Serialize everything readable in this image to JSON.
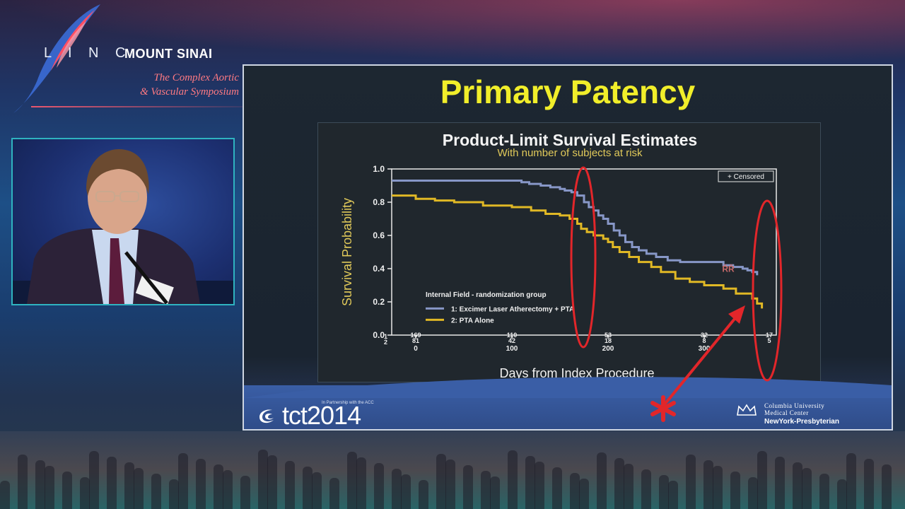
{
  "branding": {
    "linc": "L I N C",
    "mount_sinai": "MOUNT SINAI",
    "symposium_line1": "The Complex Aortic",
    "symposium_line2": "& Vascular Symposium"
  },
  "slide": {
    "title": "Primary Patency",
    "footer": {
      "tct_logo": "tct2014",
      "tct_partner": "In Partnership with the ACC",
      "columbia_line1": "Columbia University",
      "columbia_line2": "Medical Center",
      "nyp": "NewYork-Presbyterian"
    }
  },
  "colors": {
    "title": "#f1ee2a",
    "series1": "#8797c7",
    "series2": "#e0b825",
    "annotation": "#e2262a"
  },
  "chart_data": {
    "type": "line",
    "title": "Product-Limit Survival Estimates",
    "subtitle": "With number of subjects at risk",
    "xlabel": "Days from Index Procedure",
    "ylabel": "Survival Probability",
    "xlim": [
      -25,
      375
    ],
    "ylim": [
      0,
      1
    ],
    "x_ticks": [
      0,
      100,
      200,
      300
    ],
    "y_ticks": [
      "0.0",
      "0.2",
      "0.4",
      "0.6",
      "0.8",
      "1.0"
    ],
    "legend_title": "Internal Field - randomization group",
    "censored_label": "+ Censored",
    "censored_mark": "ŘŘ",
    "series": [
      {
        "name": "1: Excimer Laser Atherectomy + PTA",
        "color": "#8797c7",
        "points": [
          [
            -25,
            0.93
          ],
          [
            0,
            0.93
          ],
          [
            20,
            0.93
          ],
          [
            50,
            0.93
          ],
          [
            100,
            0.93
          ],
          [
            110,
            0.92
          ],
          [
            118,
            0.91
          ],
          [
            130,
            0.9
          ],
          [
            140,
            0.89
          ],
          [
            150,
            0.88
          ],
          [
            155,
            0.87
          ],
          [
            162,
            0.86
          ],
          [
            168,
            0.84
          ],
          [
            175,
            0.8
          ],
          [
            180,
            0.77
          ],
          [
            185,
            0.75
          ],
          [
            190,
            0.72
          ],
          [
            195,
            0.7
          ],
          [
            200,
            0.67
          ],
          [
            206,
            0.63
          ],
          [
            212,
            0.6
          ],
          [
            218,
            0.56
          ],
          [
            225,
            0.53
          ],
          [
            232,
            0.51
          ],
          [
            240,
            0.49
          ],
          [
            250,
            0.47
          ],
          [
            262,
            0.45
          ],
          [
            275,
            0.44
          ],
          [
            300,
            0.44
          ],
          [
            320,
            0.42
          ],
          [
            330,
            0.41
          ],
          [
            340,
            0.4
          ],
          [
            345,
            0.39
          ],
          [
            350,
            0.38
          ],
          [
            355,
            0.36
          ]
        ]
      },
      {
        "name": "2: PTA Alone",
        "color": "#e0b825",
        "points": [
          [
            -25,
            0.84
          ],
          [
            -15,
            0.84
          ],
          [
            0,
            0.82
          ],
          [
            20,
            0.81
          ],
          [
            40,
            0.8
          ],
          [
            70,
            0.78
          ],
          [
            100,
            0.77
          ],
          [
            120,
            0.75
          ],
          [
            135,
            0.73
          ],
          [
            150,
            0.72
          ],
          [
            160,
            0.7
          ],
          [
            168,
            0.67
          ],
          [
            172,
            0.64
          ],
          [
            178,
            0.62
          ],
          [
            185,
            0.6
          ],
          [
            195,
            0.58
          ],
          [
            200,
            0.56
          ],
          [
            205,
            0.53
          ],
          [
            212,
            0.5
          ],
          [
            222,
            0.47
          ],
          [
            232,
            0.44
          ],
          [
            245,
            0.41
          ],
          [
            255,
            0.38
          ],
          [
            270,
            0.34
          ],
          [
            285,
            0.32
          ],
          [
            300,
            0.3
          ],
          [
            320,
            0.28
          ],
          [
            333,
            0.25
          ],
          [
            345,
            0.25
          ],
          [
            350,
            0.22
          ],
          [
            355,
            0.19
          ],
          [
            360,
            0.16
          ]
        ]
      }
    ],
    "at_risk": {
      "row_labels": [
        "1",
        "2"
      ],
      "columns": [
        {
          "x": 0,
          "group1": "169",
          "group2": "81"
        },
        {
          "x": 100,
          "group1": "110",
          "group2": "42"
        },
        {
          "x": 200,
          "group1": "53",
          "group2": "18"
        },
        {
          "x": 300,
          "group1": "32",
          "group2": "8"
        },
        {
          "x": 375,
          "group1": "17",
          "group2": "5"
        }
      ]
    }
  }
}
